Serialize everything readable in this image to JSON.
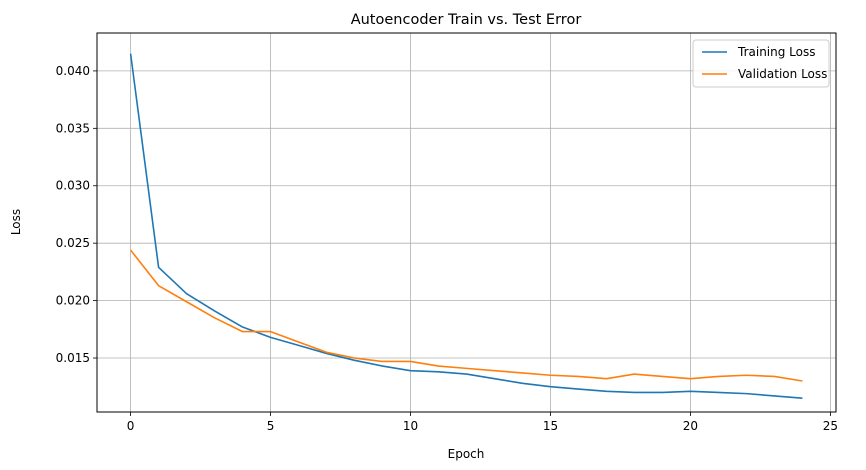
{
  "chart_data": {
    "type": "line",
    "title": "Autoencoder Train vs. Test Error",
    "xlabel": "Epoch",
    "ylabel": "Loss",
    "xlim": [
      -1.2,
      25.2
    ],
    "ylim": [
      0.0103,
      0.0433
    ],
    "xticks": [
      0,
      5,
      10,
      15,
      20,
      25
    ],
    "xtick_labels": [
      "0",
      "5",
      "10",
      "15",
      "20",
      "25"
    ],
    "yticks": [
      0.015,
      0.02,
      0.025,
      0.03,
      0.035,
      0.04
    ],
    "ytick_labels": [
      "0.015",
      "0.020",
      "0.025",
      "0.030",
      "0.035",
      "0.040"
    ],
    "grid": true,
    "legend_position": "top-right",
    "x": [
      0,
      1,
      2,
      3,
      4,
      5,
      6,
      7,
      8,
      9,
      10,
      11,
      12,
      13,
      14,
      15,
      16,
      17,
      18,
      19,
      20,
      21,
      22,
      23,
      24
    ],
    "series": [
      {
        "name": "Training Loss",
        "color": "#1f77b4",
        "values": [
          0.0415,
          0.0229,
          0.0206,
          0.0191,
          0.0177,
          0.0168,
          0.0161,
          0.0154,
          0.0148,
          0.0143,
          0.0139,
          0.0138,
          0.0136,
          0.0132,
          0.0128,
          0.0125,
          0.0123,
          0.0121,
          0.012,
          0.012,
          0.0121,
          0.012,
          0.0119,
          0.0117,
          0.0115
        ]
      },
      {
        "name": "Validation Loss",
        "color": "#ff7f0e",
        "values": [
          0.0244,
          0.0213,
          0.0199,
          0.0185,
          0.0173,
          0.0173,
          0.0164,
          0.0155,
          0.015,
          0.0147,
          0.0147,
          0.0143,
          0.0141,
          0.0139,
          0.0137,
          0.0135,
          0.0134,
          0.0132,
          0.0136,
          0.0134,
          0.0132,
          0.0134,
          0.0135,
          0.0134,
          0.013
        ]
      }
    ]
  }
}
